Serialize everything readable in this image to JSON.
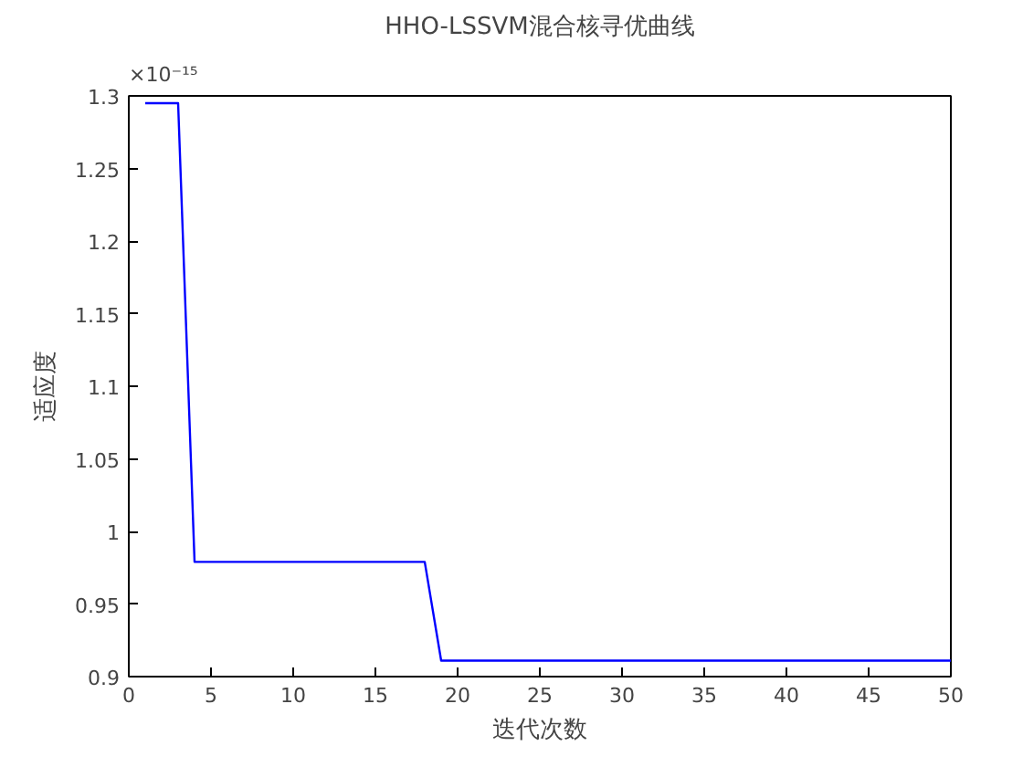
{
  "chart_data": {
    "type": "line",
    "title": "HHO-LSSVM混合核寻优曲线",
    "xlabel": "迭代次数",
    "ylabel": "适应度",
    "annotations": [
      "×10⁻¹⁵"
    ],
    "series": [
      {
        "color": "#0000ff",
        "x": [
          1,
          3,
          4,
          18,
          19,
          50
        ],
        "values": [
          1.295,
          1.295,
          0.979,
          0.979,
          0.911,
          0.911
        ]
      }
    ],
    "xlim": [
      0,
      50
    ],
    "xticks": [
      0,
      5,
      10,
      15,
      20,
      25,
      30,
      35,
      40,
      45,
      50
    ],
    "ylim": [
      0.9,
      1.3
    ],
    "yticks": [
      0.9,
      0.95,
      1,
      1.05,
      1.1,
      1.15,
      1.2,
      1.25,
      1.3
    ],
    "grid": false,
    "marker": "none",
    "line_style": "solid"
  }
}
